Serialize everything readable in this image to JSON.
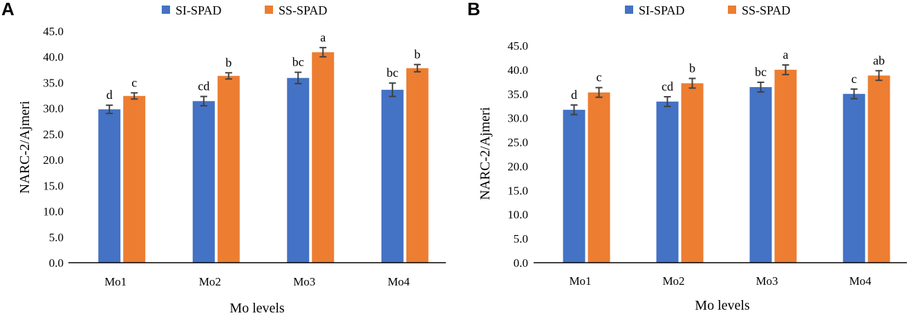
{
  "colors": {
    "si": "#4472C4",
    "ss": "#ED7D31",
    "error": "#404040",
    "axis": "#000000"
  },
  "chart_data": [
    {
      "panel": "A",
      "type": "bar",
      "categories": [
        "Mo1",
        "Mo2",
        "Mo3",
        "Mo4"
      ],
      "xlabel": "Mo levels",
      "ylabel": "NARC-2/Ajmeri",
      "ylim": [
        0,
        45
      ],
      "yticks": [
        "0.0",
        "5.0",
        "10.0",
        "15.0",
        "20.0",
        "25.0",
        "30.0",
        "35.0",
        "40.0",
        "45.0"
      ],
      "legend": [
        "SI-SPAD",
        "SS-SPAD"
      ],
      "series": [
        {
          "name": "SI-SPAD",
          "values": [
            29.8,
            31.4,
            35.9,
            33.6
          ],
          "errors": [
            0.8,
            0.9,
            1.1,
            1.3
          ],
          "labels": [
            "d",
            "cd",
            "bc",
            "bc"
          ]
        },
        {
          "name": "SS-SPAD",
          "values": [
            32.4,
            36.3,
            40.9,
            37.8
          ],
          "errors": [
            0.6,
            0.6,
            0.9,
            0.7
          ],
          "labels": [
            "c",
            "b",
            "a",
            "b"
          ]
        }
      ]
    },
    {
      "panel": "B",
      "type": "bar",
      "categories": [
        "Mo1",
        "Mo2",
        "Mo3",
        "Mo4"
      ],
      "xlabel": "Mo levels",
      "ylabel": "NARC-2/Ajmeri",
      "ylim": [
        0,
        45
      ],
      "yticks": [
        "0.0",
        "5.0",
        "10.0",
        "15.0",
        "20.0",
        "25.0",
        "30.0",
        "35.0",
        "40.0",
        "45.0"
      ],
      "legend": [
        "SI-SPAD",
        "SS-SPAD"
      ],
      "series": [
        {
          "name": "SI-SPAD",
          "values": [
            31.7,
            33.4,
            36.4,
            35.0
          ],
          "errors": [
            1.0,
            1.0,
            1.0,
            1.0
          ],
          "labels": [
            "d",
            "cd",
            "bc",
            "c"
          ]
        },
        {
          "name": "SS-SPAD",
          "values": [
            35.3,
            37.2,
            40.0,
            38.8
          ],
          "errors": [
            1.0,
            1.0,
            1.0,
            1.0
          ],
          "labels": [
            "c",
            "b",
            "a",
            "ab"
          ]
        }
      ]
    }
  ]
}
